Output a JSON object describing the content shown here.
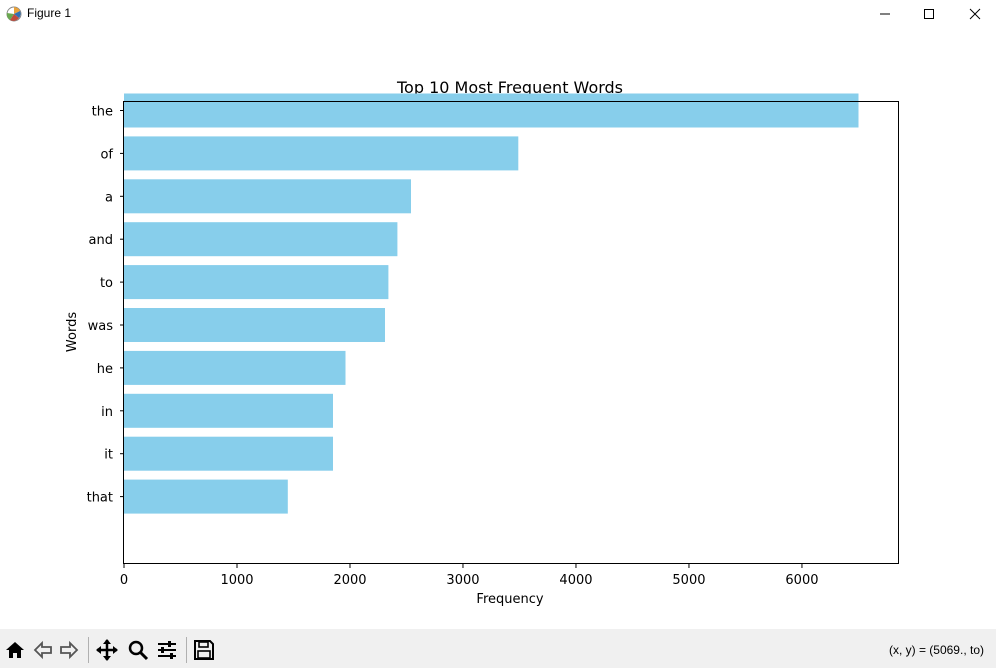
{
  "window": {
    "title": "Figure 1",
    "app_icon": "matplotlib-icon",
    "controls": [
      "minimize-icon",
      "maximize-icon",
      "close-icon"
    ]
  },
  "chart_data": {
    "type": "bar",
    "orientation": "horizontal",
    "title": "Top 10 Most Frequent Words",
    "xlabel": "Frequency",
    "ylabel": "Words",
    "categories": [
      "the",
      "of",
      "a",
      "and",
      "to",
      "was",
      "he",
      "in",
      "it",
      "that"
    ],
    "values": [
      6500,
      3490,
      2540,
      2420,
      2340,
      2310,
      1960,
      1850,
      1850,
      1450
    ],
    "xlim": [
      0,
      6850
    ],
    "xticks": [
      "0",
      "1000",
      "2000",
      "3000",
      "4000",
      "5000",
      "6000"
    ],
    "bar_color": "#87ceeb",
    "grid": false
  },
  "toolbar": {
    "buttons": [
      "home-icon",
      "back-icon",
      "forward-icon",
      "pan-icon",
      "zoom-icon",
      "configure-subplots-icon",
      "save-icon"
    ],
    "coords_text": "(x, y) = (5069., to)"
  }
}
